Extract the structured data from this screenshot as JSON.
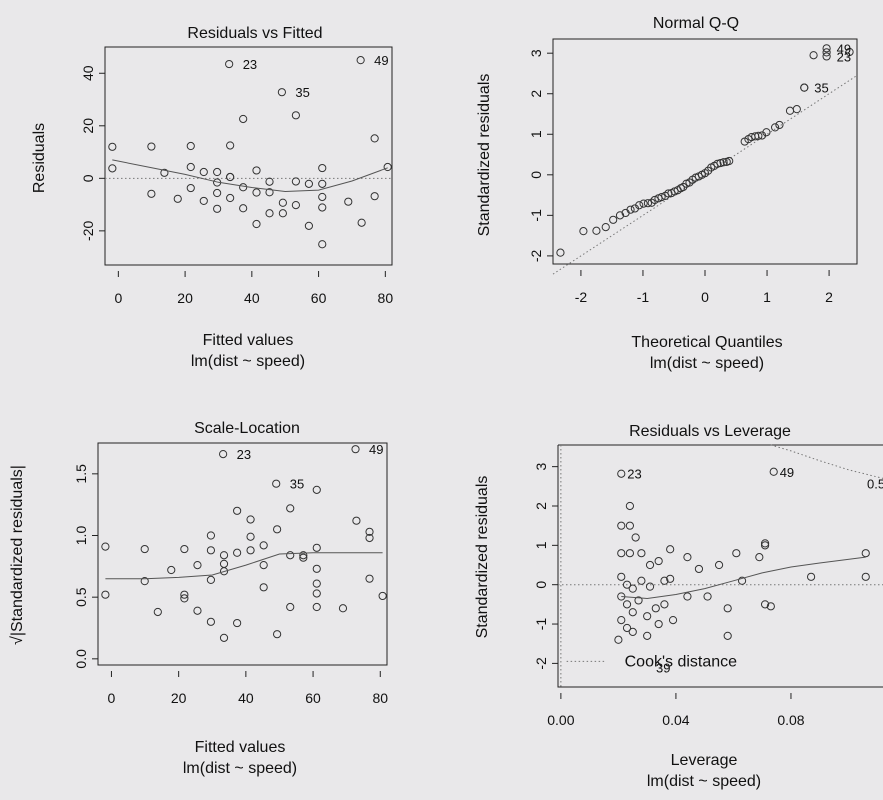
{
  "chart_data": [
    {
      "type": "scatter",
      "title": "Residuals vs Fitted",
      "xlabel": "Fitted values",
      "sublabel": "lm(dist ~ speed)",
      "ylabel": "Residuals",
      "xlim": [
        -4,
        82
      ],
      "ylim": [
        -33,
        50
      ],
      "xticks": [
        0,
        20,
        40,
        60,
        80
      ],
      "yticks": [
        -20,
        0,
        20,
        40
      ],
      "ref_line": 0,
      "points": [
        [
          -1.8,
          3.8
        ],
        [
          -1.8,
          12.0
        ],
        [
          9.9,
          -5.9
        ],
        [
          9.9,
          12.1
        ],
        [
          13.8,
          2.1
        ],
        [
          17.8,
          -7.8
        ],
        [
          21.7,
          -3.7
        ],
        [
          21.7,
          4.3
        ],
        [
          21.7,
          12.3
        ],
        [
          25.6,
          -8.6
        ],
        [
          25.6,
          2.4
        ],
        [
          29.6,
          -11.6
        ],
        [
          29.6,
          -5.6
        ],
        [
          29.6,
          -1.6
        ],
        [
          29.6,
          2.4
        ],
        [
          33.5,
          -7.5
        ],
        [
          33.5,
          0.5
        ],
        [
          33.5,
          0.5
        ],
        [
          33.5,
          12.5
        ],
        [
          37.4,
          -11.4
        ],
        [
          37.4,
          -3.4
        ],
        [
          37.4,
          22.6
        ],
        [
          41.4,
          -17.4
        ],
        [
          41.4,
          -5.4
        ],
        [
          41.4,
          3.0
        ],
        [
          45.3,
          -13.3
        ],
        [
          45.3,
          -5.3
        ],
        [
          45.3,
          -1.3
        ],
        [
          49.3,
          -13.3
        ],
        [
          49.3,
          -9.3
        ],
        [
          53.2,
          -10.2
        ],
        [
          53.2,
          -1.2
        ],
        [
          53.2,
          24.0
        ],
        [
          57.1,
          -18.1
        ],
        [
          57.1,
          -2.1
        ],
        [
          61.1,
          -25.1
        ],
        [
          61.1,
          -11.1
        ],
        [
          61.1,
          -7.1
        ],
        [
          61.1,
          -2.1
        ],
        [
          61.1,
          3.9
        ],
        [
          68.9,
          -8.9
        ],
        [
          72.9,
          -16.9
        ],
        [
          76.8,
          -6.8
        ],
        [
          76.8,
          15.2
        ],
        [
          80.7,
          4.3
        ]
      ],
      "labeled_points": [
        {
          "label": "23",
          "x": 37.4,
          "y": 43.5
        },
        {
          "label": "35",
          "x": 53.2,
          "y": 32.8
        },
        {
          "label": "49",
          "x": 76.8,
          "y": 45.0
        }
      ],
      "smooth": [
        [
          -1.8,
          7
        ],
        [
          10,
          4
        ],
        [
          20,
          1.5
        ],
        [
          30,
          -1.5
        ],
        [
          40,
          -3.5
        ],
        [
          50,
          -5
        ],
        [
          60,
          -4.5
        ],
        [
          70,
          -1
        ],
        [
          80.7,
          4
        ]
      ]
    },
    {
      "type": "scatter",
      "title": "Normal Q-Q",
      "xlabel": "Theoretical Quantiles",
      "sublabel": "lm(dist ~ speed)",
      "ylabel": "Standardized residuals",
      "xlim": [
        -2.45,
        2.45
      ],
      "ylim": [
        -2.2,
        3.35
      ],
      "xticks": [
        -2,
        -1,
        0,
        1,
        2
      ],
      "yticks": [
        -2,
        -1,
        0,
        1,
        2,
        3
      ],
      "ref_line": [
        [
          -2.45,
          -2.45
        ],
        [
          2.45,
          2.45
        ]
      ],
      "points": [
        [
          -2.33,
          -1.92
        ],
        [
          -1.96,
          -1.39
        ],
        [
          -1.75,
          -1.38
        ],
        [
          -1.6,
          -1.29
        ],
        [
          -1.48,
          -1.11
        ],
        [
          -1.37,
          -1.0
        ],
        [
          -1.28,
          -0.94
        ],
        [
          -1.2,
          -0.86
        ],
        [
          -1.13,
          -0.83
        ],
        [
          -1.06,
          -0.75
        ],
        [
          -0.99,
          -0.71
        ],
        [
          -0.92,
          -0.7
        ],
        [
          -0.86,
          -0.69
        ],
        [
          -0.81,
          -0.62
        ],
        [
          -0.75,
          -0.58
        ],
        [
          -0.7,
          -0.55
        ],
        [
          -0.64,
          -0.52
        ],
        [
          -0.59,
          -0.46
        ],
        [
          -0.54,
          -0.45
        ],
        [
          -0.49,
          -0.41
        ],
        [
          -0.44,
          -0.38
        ],
        [
          -0.39,
          -0.33
        ],
        [
          -0.35,
          -0.3
        ],
        [
          -0.3,
          -0.22
        ],
        [
          -0.25,
          -0.19
        ],
        [
          -0.2,
          -0.12
        ],
        [
          -0.15,
          -0.07
        ],
        [
          -0.1,
          -0.04
        ],
        [
          -0.05,
          0.0
        ],
        [
          0.0,
          0.04
        ],
        [
          0.05,
          0.1
        ],
        [
          0.1,
          0.18
        ],
        [
          0.15,
          0.22
        ],
        [
          0.2,
          0.27
        ],
        [
          0.25,
          0.29
        ],
        [
          0.3,
          0.31
        ],
        [
          0.35,
          0.32
        ],
        [
          0.39,
          0.34
        ],
        [
          0.64,
          0.82
        ],
        [
          0.7,
          0.88
        ],
        [
          0.75,
          0.93
        ],
        [
          0.81,
          0.95
        ],
        [
          0.86,
          0.96
        ],
        [
          0.92,
          0.97
        ],
        [
          0.99,
          1.05
        ],
        [
          1.13,
          1.17
        ],
        [
          1.2,
          1.23
        ],
        [
          1.37,
          1.58
        ],
        [
          1.48,
          1.62
        ],
        [
          1.6,
          2.15
        ],
        [
          1.75,
          2.95
        ],
        [
          1.96,
          3.02
        ],
        [
          2.33,
          3.03
        ]
      ],
      "labeled_points": [
        {
          "label": "35",
          "x": 1.6,
          "y": 2.15
        },
        {
          "label": "23",
          "x": 1.96,
          "y": 2.92
        },
        {
          "label": "49",
          "x": 1.96,
          "y": 3.12
        }
      ]
    },
    {
      "type": "scatter",
      "title": "Scale-Location",
      "xlabel": "Fitted values",
      "sublabel": "lm(dist ~ speed)",
      "ylabel": "√|Standardized residuals|",
      "xlim": [
        -4,
        82
      ],
      "ylim": [
        -0.05,
        1.75
      ],
      "xticks": [
        0,
        20,
        40,
        60,
        80
      ],
      "yticks": [
        0.0,
        0.5,
        1.0,
        1.5
      ],
      "points": [
        [
          -1.8,
          0.52
        ],
        [
          -1.8,
          0.91
        ],
        [
          9.9,
          0.63
        ],
        [
          9.9,
          0.89
        ],
        [
          13.8,
          0.38
        ],
        [
          17.8,
          0.72
        ],
        [
          21.7,
          0.49
        ],
        [
          21.7,
          0.52
        ],
        [
          21.7,
          0.89
        ],
        [
          25.6,
          0.76
        ],
        [
          25.6,
          0.39
        ],
        [
          29.6,
          0.88
        ],
        [
          29.6,
          1.0
        ],
        [
          29.6,
          0.64
        ],
        [
          29.6,
          0.3
        ],
        [
          33.5,
          0.71
        ],
        [
          33.5,
          0.17
        ],
        [
          33.5,
          0.84
        ],
        [
          33.5,
          0.77
        ],
        [
          37.4,
          0.86
        ],
        [
          37.4,
          0.29
        ],
        [
          37.4,
          1.2
        ],
        [
          41.4,
          1.13
        ],
        [
          41.4,
          0.99
        ],
        [
          41.4,
          0.88
        ],
        [
          45.3,
          0.92
        ],
        [
          45.3,
          0.58
        ],
        [
          45.3,
          0.76
        ],
        [
          49.3,
          1.05
        ],
        [
          49.3,
          0.2
        ],
        [
          53.2,
          1.22
        ],
        [
          53.2,
          0.84
        ],
        [
          53.2,
          0.42
        ],
        [
          57.1,
          0.84
        ],
        [
          57.1,
          0.82
        ],
        [
          61.1,
          0.53
        ],
        [
          61.1,
          0.9
        ],
        [
          61.1,
          0.61
        ],
        [
          61.1,
          0.42
        ],
        [
          61.1,
          0.73
        ],
        [
          68.9,
          0.41
        ],
        [
          72.9,
          1.12
        ],
        [
          76.8,
          0.98
        ],
        [
          76.8,
          1.03
        ],
        [
          76.8,
          0.65
        ],
        [
          80.7,
          0.51
        ]
      ],
      "labeled_points": [
        {
          "label": "23",
          "x": 37.4,
          "y": 1.66
        },
        {
          "label": "35",
          "x": 53.2,
          "y": 1.42
        },
        {
          "label": "49",
          "x": 76.8,
          "y": 1.7
        }
      ],
      "extra_points": [
        [
          61.1,
          1.37
        ]
      ],
      "smooth": [
        [
          -1.8,
          0.65
        ],
        [
          10,
          0.65
        ],
        [
          20,
          0.66
        ],
        [
          30,
          0.68
        ],
        [
          40,
          0.76
        ],
        [
          50,
          0.85
        ],
        [
          60,
          0.86
        ],
        [
          70,
          0.86
        ],
        [
          80.7,
          0.86
        ]
      ]
    },
    {
      "type": "scatter",
      "title": "Residuals vs Leverage",
      "xlabel": "Leverage",
      "sublabel": "lm(dist ~ speed)",
      "ylabel": "Standardized residuals",
      "xlim": [
        -0.001,
        0.112
      ],
      "ylim": [
        -2.6,
        3.55
      ],
      "xticks": [
        0.0,
        0.04,
        0.08
      ],
      "xtick_labels": [
        "0.00",
        "0.04",
        "0.08"
      ],
      "yticks": [
        -2,
        -1,
        0,
        1,
        2,
        3
      ],
      "cooks_label": "0.5",
      "legend": "Cook's distance",
      "labeled_points": [
        {
          "label": "23",
          "x": 0.021,
          "y": 2.82
        },
        {
          "label": "49",
          "x": 0.074,
          "y": 2.87
        },
        {
          "label": "39",
          "x": 0.031,
          "y": -2.1
        }
      ],
      "points": [
        [
          0.021,
          2.82
        ],
        [
          0.074,
          2.87
        ],
        [
          0.021,
          1.5
        ],
        [
          0.024,
          1.5
        ],
        [
          0.024,
          2.0
        ],
        [
          0.026,
          1.2
        ],
        [
          0.021,
          0.8
        ],
        [
          0.024,
          0.8
        ],
        [
          0.028,
          0.8
        ],
        [
          0.031,
          0.5
        ],
        [
          0.034,
          0.6
        ],
        [
          0.038,
          0.9
        ],
        [
          0.044,
          0.7
        ],
        [
          0.048,
          0.4
        ],
        [
          0.055,
          0.5
        ],
        [
          0.061,
          0.8
        ],
        [
          0.069,
          0.7
        ],
        [
          0.071,
          1.0
        ],
        [
          0.071,
          1.05
        ],
        [
          0.087,
          0.2
        ],
        [
          0.106,
          0.8
        ],
        [
          0.106,
          0.2
        ],
        [
          0.021,
          0.2
        ],
        [
          0.023,
          0.0
        ],
        [
          0.025,
          -0.1
        ],
        [
          0.028,
          0.1
        ],
        [
          0.031,
          -0.05
        ],
        [
          0.036,
          0.1
        ],
        [
          0.038,
          0.15
        ],
        [
          0.044,
          -0.3
        ],
        [
          0.051,
          -0.3
        ],
        [
          0.058,
          -0.6
        ],
        [
          0.063,
          0.1
        ],
        [
          0.071,
          -0.5
        ],
        [
          0.073,
          -0.55
        ],
        [
          0.021,
          -0.3
        ],
        [
          0.023,
          -0.5
        ],
        [
          0.025,
          -0.7
        ],
        [
          0.027,
          -0.4
        ],
        [
          0.03,
          -0.8
        ],
        [
          0.033,
          -0.6
        ],
        [
          0.036,
          -0.5
        ],
        [
          0.039,
          -0.9
        ],
        [
          0.021,
          -0.9
        ],
        [
          0.023,
          -1.1
        ],
        [
          0.025,
          -1.2
        ],
        [
          0.02,
          -1.4
        ],
        [
          0.03,
          -1.3
        ],
        [
          0.034,
          -1.0
        ],
        [
          0.058,
          -1.3
        ]
      ],
      "smooth": [
        [
          0.021,
          -0.3
        ],
        [
          0.03,
          -0.35
        ],
        [
          0.04,
          -0.25
        ],
        [
          0.05,
          -0.1
        ],
        [
          0.06,
          0.1
        ],
        [
          0.07,
          0.3
        ],
        [
          0.08,
          0.45
        ],
        [
          0.09,
          0.55
        ],
        [
          0.106,
          0.7
        ]
      ],
      "cooks_curve": [
        [
          0.073,
          3.55
        ],
        [
          0.08,
          3.4
        ],
        [
          0.09,
          3.15
        ],
        [
          0.1,
          2.92
        ],
        [
          0.112,
          2.7
        ]
      ]
    }
  ]
}
